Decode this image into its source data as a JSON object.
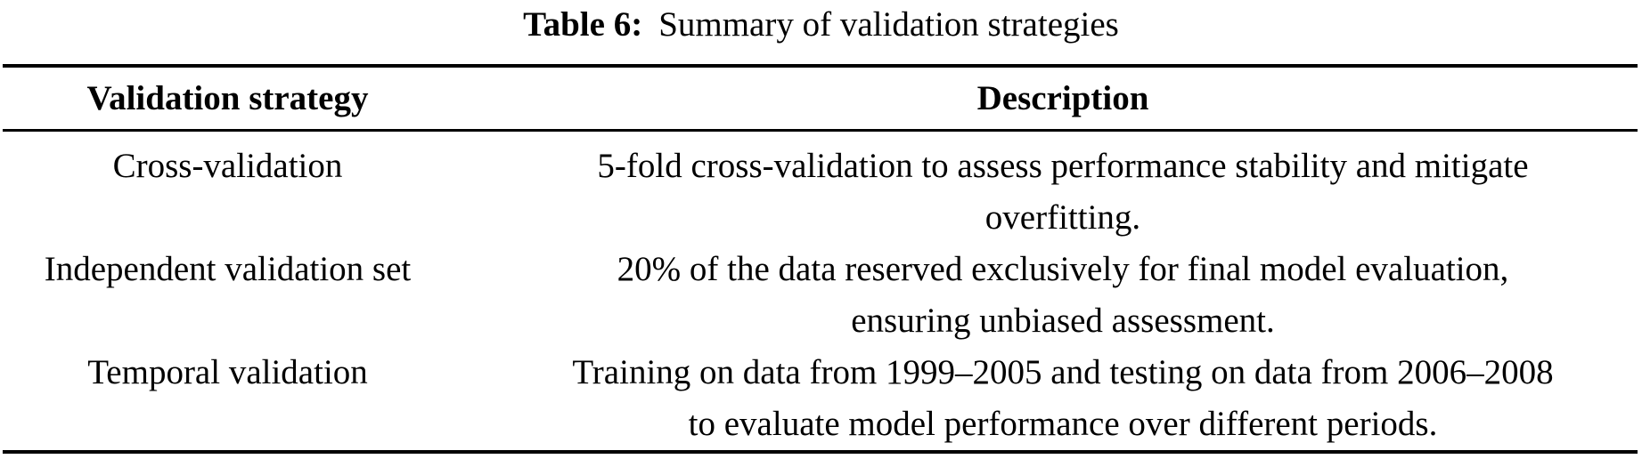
{
  "caption": {
    "label": "Table 6:",
    "text": "Summary of validation strategies"
  },
  "table": {
    "headers": [
      "Validation strategy",
      "Description"
    ],
    "rows": [
      {
        "strategy": "Cross-validation",
        "description": "5-fold cross-validation to assess performance stability and mitigate overfitting.",
        "description_lines": [
          "5-fold cross-validation to assess performance stability and mitigate",
          "overfitting."
        ]
      },
      {
        "strategy": "Independent validation set",
        "description": "20% of the data reserved exclusively for final model evaluation, ensuring unbiased assessment.",
        "description_lines": [
          "20% of the data reserved exclusively for final model evaluation,",
          "ensuring unbiased assessment."
        ]
      },
      {
        "strategy": "Temporal validation",
        "description": "Training on data from 1999–2005 and testing on data from 2006–2008 to evaluate model performance over different periods.",
        "description_lines": [
          "Training on data from 1999–2005 and testing on data from 2006–2008",
          "to evaluate model performance over different periods."
        ]
      }
    ]
  },
  "colors": {
    "background": "#ffffff",
    "text": "#000000",
    "rule": "#000000"
  }
}
